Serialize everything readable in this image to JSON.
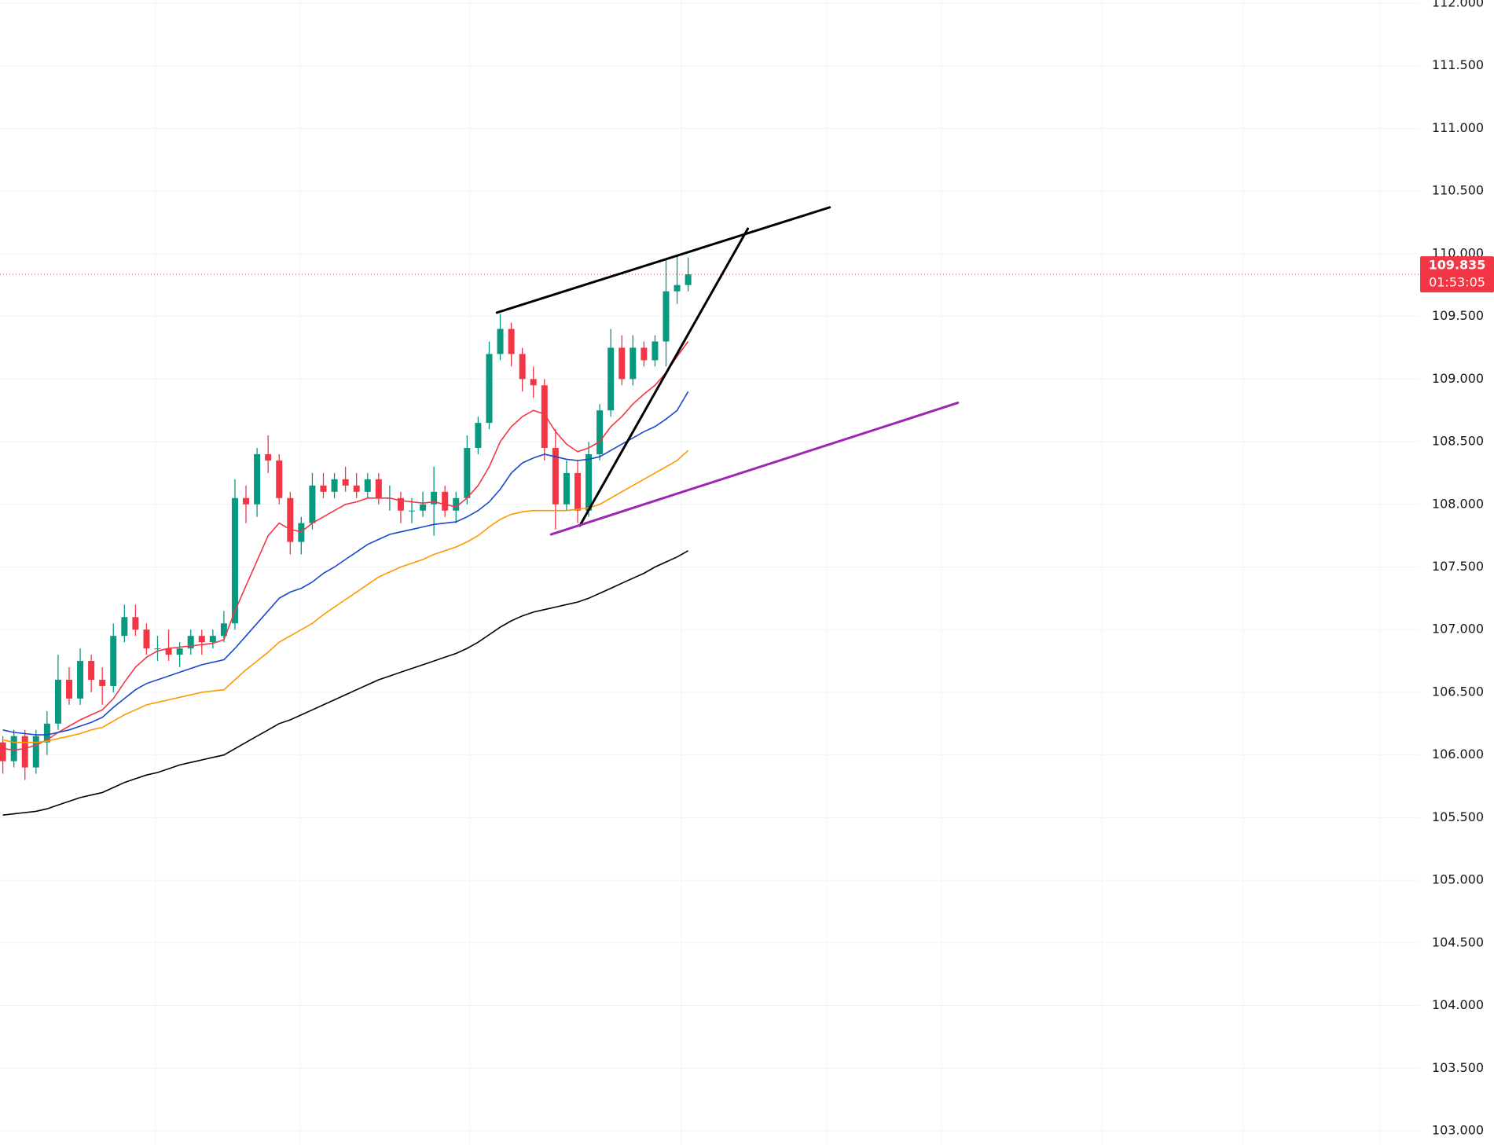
{
  "chart_data": {
    "type": "candlestick",
    "ylim": [
      102.887,
      112.025
    ],
    "yticks": [
      {
        "value": 103,
        "label": "103.000"
      },
      {
        "value": 103.5,
        "label": "103.500"
      },
      {
        "value": 104,
        "label": "104.000"
      },
      {
        "value": 104.5,
        "label": "104.500"
      },
      {
        "value": 105,
        "label": "105.000"
      },
      {
        "value": 105.5,
        "label": "105.500"
      },
      {
        "value": 106,
        "label": "106.000"
      },
      {
        "value": 106.5,
        "label": "106.500"
      },
      {
        "value": 107,
        "label": "107.000"
      },
      {
        "value": 107.5,
        "label": "107.500"
      },
      {
        "value": 108,
        "label": "108.000"
      },
      {
        "value": 108.5,
        "label": "108.500"
      },
      {
        "value": 109,
        "label": "109.000"
      },
      {
        "value": 109.5,
        "label": "109.500"
      },
      {
        "value": 110,
        "label": "110.000"
      },
      {
        "value": 110.5,
        "label": "110.500"
      },
      {
        "value": 111,
        "label": "111.000"
      },
      {
        "value": 111.5,
        "label": "111.500"
      },
      {
        "value": 112,
        "label": "112.000"
      }
    ],
    "grid": true,
    "up_color": "#089981",
    "down_color": "#f23645",
    "ohlc": [
      [
        106.1,
        106.15,
        105.85,
        105.95
      ],
      [
        105.95,
        106.2,
        105.9,
        106.15
      ],
      [
        106.15,
        106.2,
        105.8,
        105.9
      ],
      [
        105.9,
        106.2,
        105.85,
        106.15
      ],
      [
        106.1,
        106.35,
        106.0,
        106.25
      ],
      [
        106.25,
        106.8,
        106.2,
        106.6
      ],
      [
        106.6,
        106.7,
        106.4,
        106.45
      ],
      [
        106.45,
        106.85,
        106.4,
        106.75
      ],
      [
        106.75,
        106.8,
        106.5,
        106.6
      ],
      [
        106.6,
        106.7,
        106.4,
        106.55
      ],
      [
        106.55,
        107.05,
        106.5,
        106.95
      ],
      [
        106.95,
        107.2,
        106.9,
        107.1
      ],
      [
        107.1,
        107.2,
        106.95,
        107.0
      ],
      [
        107.0,
        107.05,
        106.8,
        106.85
      ],
      [
        106.85,
        106.95,
        106.75,
        106.85
      ],
      [
        106.85,
        107.0,
        106.75,
        106.8
      ],
      [
        106.8,
        106.9,
        106.7,
        106.85
      ],
      [
        106.85,
        107.0,
        106.8,
        106.95
      ],
      [
        106.95,
        107.0,
        106.8,
        106.9
      ],
      [
        106.9,
        107.0,
        106.85,
        106.95
      ],
      [
        106.95,
        107.15,
        106.9,
        107.05
      ],
      [
        107.05,
        108.2,
        107.0,
        108.05
      ],
      [
        108.05,
        108.15,
        107.85,
        108.0
      ],
      [
        108.0,
        108.45,
        107.9,
        108.4
      ],
      [
        108.4,
        108.55,
        108.25,
        108.35
      ],
      [
        108.35,
        108.4,
        108.0,
        108.05
      ],
      [
        108.05,
        108.1,
        107.6,
        107.7
      ],
      [
        107.7,
        107.9,
        107.6,
        107.85
      ],
      [
        107.85,
        108.25,
        107.8,
        108.15
      ],
      [
        108.15,
        108.25,
        108.05,
        108.1
      ],
      [
        108.1,
        108.25,
        108.05,
        108.2
      ],
      [
        108.2,
        108.3,
        108.1,
        108.15
      ],
      [
        108.15,
        108.25,
        108.05,
        108.1
      ],
      [
        108.1,
        108.25,
        108.05,
        108.2
      ],
      [
        108.2,
        108.25,
        108.0,
        108.05
      ],
      [
        108.05,
        108.15,
        107.95,
        108.05
      ],
      [
        108.05,
        108.1,
        107.85,
        107.95
      ],
      [
        107.95,
        108.05,
        107.85,
        107.95
      ],
      [
        107.95,
        108.1,
        107.9,
        108.0
      ],
      [
        108.0,
        108.3,
        107.75,
        108.1
      ],
      [
        108.1,
        108.15,
        107.9,
        107.95
      ],
      [
        107.95,
        108.1,
        107.85,
        108.05
      ],
      [
        108.05,
        108.55,
        108.0,
        108.45
      ],
      [
        108.45,
        108.7,
        108.4,
        108.65
      ],
      [
        108.65,
        109.3,
        108.6,
        109.2
      ],
      [
        109.2,
        109.52,
        109.15,
        109.4
      ],
      [
        109.4,
        109.45,
        109.1,
        109.2
      ],
      [
        109.2,
        109.25,
        108.9,
        109.0
      ],
      [
        109.0,
        109.1,
        108.85,
        108.95
      ],
      [
        108.95,
        109.0,
        108.35,
        108.45
      ],
      [
        108.45,
        108.6,
        107.8,
        108.0
      ],
      [
        108.0,
        108.35,
        107.95,
        108.25
      ],
      [
        108.25,
        108.35,
        107.85,
        107.95
      ],
      [
        107.95,
        108.5,
        107.9,
        108.4
      ],
      [
        108.4,
        108.8,
        108.35,
        108.75
      ],
      [
        108.75,
        109.4,
        108.7,
        109.25
      ],
      [
        109.25,
        109.35,
        108.95,
        109.0
      ],
      [
        109.0,
        109.35,
        108.95,
        109.25
      ],
      [
        109.25,
        109.3,
        109.1,
        109.15
      ],
      [
        109.15,
        109.35,
        109.1,
        109.3
      ],
      [
        109.3,
        109.95,
        109.1,
        109.7
      ],
      [
        109.7,
        109.98,
        109.6,
        109.75
      ],
      [
        109.75,
        109.97,
        109.7,
        109.835
      ]
    ],
    "series": [
      {
        "color": "#f23645",
        "values": [
          106.05,
          106.04,
          106.05,
          106.08,
          106.12,
          106.18,
          106.23,
          106.28,
          106.32,
          106.36,
          106.45,
          106.58,
          106.7,
          106.78,
          106.83,
          106.85,
          106.86,
          106.87,
          106.88,
          106.89,
          106.92,
          107.15,
          107.35,
          107.55,
          107.75,
          107.85,
          107.8,
          107.78,
          107.85,
          107.9,
          107.95,
          108.0,
          108.02,
          108.05,
          108.05,
          108.05,
          108.03,
          108.02,
          108.01,
          108.02,
          108.0,
          107.98,
          108.05,
          108.15,
          108.3,
          108.5,
          108.62,
          108.7,
          108.75,
          108.72,
          108.58,
          108.48,
          108.42,
          108.45,
          108.5,
          108.62,
          108.7,
          108.8,
          108.88,
          108.95,
          109.05,
          109.18,
          109.3
        ]
      },
      {
        "color": "#1848cc",
        "values": [
          106.2,
          106.18,
          106.17,
          106.16,
          106.16,
          106.18,
          106.2,
          106.23,
          106.26,
          106.3,
          106.38,
          106.45,
          106.52,
          106.57,
          106.6,
          106.63,
          106.66,
          106.69,
          106.72,
          106.74,
          106.76,
          106.85,
          106.95,
          107.05,
          107.15,
          107.25,
          107.3,
          107.33,
          107.38,
          107.45,
          107.5,
          107.56,
          107.62,
          107.68,
          107.72,
          107.76,
          107.78,
          107.8,
          107.82,
          107.84,
          107.85,
          107.86,
          107.9,
          107.95,
          108.02,
          108.12,
          108.25,
          108.33,
          108.37,
          108.4,
          108.38,
          108.36,
          108.35,
          108.36,
          108.38,
          108.43,
          108.48,
          108.53,
          108.58,
          108.62,
          108.68,
          108.75,
          108.9
        ]
      },
      {
        "color": "#ff9800",
        "values": [
          106.12,
          106.1,
          106.1,
          106.1,
          106.11,
          106.13,
          106.15,
          106.17,
          106.2,
          106.22,
          106.27,
          106.32,
          106.36,
          106.4,
          106.42,
          106.44,
          106.46,
          106.48,
          106.5,
          106.51,
          106.52,
          106.6,
          106.68,
          106.75,
          106.82,
          106.9,
          106.95,
          107.0,
          107.05,
          107.12,
          107.18,
          107.24,
          107.3,
          107.36,
          107.42,
          107.46,
          107.5,
          107.53,
          107.56,
          107.6,
          107.63,
          107.66,
          107.7,
          107.75,
          107.82,
          107.88,
          107.92,
          107.94,
          107.95,
          107.95,
          107.95,
          107.95,
          107.96,
          107.97,
          108.0,
          108.05,
          108.1,
          108.15,
          108.2,
          108.25,
          108.3,
          108.35,
          108.43
        ]
      },
      {
        "color": "#000000",
        "values": [
          105.52,
          105.53,
          105.54,
          105.55,
          105.57,
          105.6,
          105.63,
          105.66,
          105.68,
          105.7,
          105.74,
          105.78,
          105.81,
          105.84,
          105.86,
          105.89,
          105.92,
          105.94,
          105.96,
          105.98,
          106.0,
          106.05,
          106.1,
          106.15,
          106.2,
          106.25,
          106.28,
          106.32,
          106.36,
          106.4,
          106.44,
          106.48,
          106.52,
          106.56,
          106.6,
          106.63,
          106.66,
          106.69,
          106.72,
          106.75,
          106.78,
          106.81,
          106.85,
          106.9,
          106.96,
          107.02,
          107.07,
          107.11,
          107.14,
          107.16,
          107.18,
          107.2,
          107.22,
          107.25,
          107.29,
          107.33,
          107.37,
          107.41,
          107.45,
          107.5,
          107.54,
          107.58,
          107.63
        ]
      }
    ],
    "trendlines": [
      {
        "color": "#000000",
        "x": [
          44.7,
          74.8
        ],
        "y": [
          109.53,
          110.37
        ]
      },
      {
        "color": "#000000",
        "x": [
          52.2,
          67.4
        ],
        "y": [
          107.83,
          110.2
        ]
      },
      {
        "color": "#9c27b0",
        "x": [
          49.6,
          86.4
        ],
        "y": [
          107.76,
          108.81
        ]
      }
    ],
    "last_price": 109.835,
    "countdown": "01:53:05",
    "last_price_color": "#f23645"
  }
}
